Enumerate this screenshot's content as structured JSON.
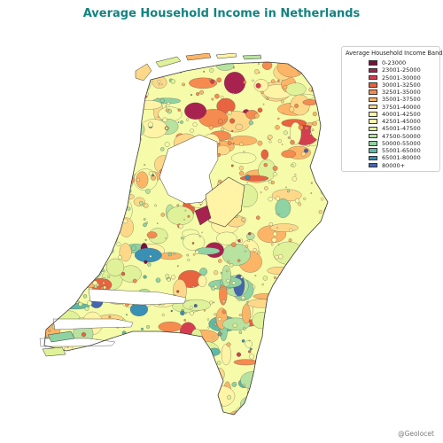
{
  "title": "Average Household Income in Netherlands",
  "credit": "@Geolocet",
  "colors": {
    "title": "#138381",
    "credit": "#7a7a7a",
    "border": "#3a3a3a",
    "water": "#ffffff"
  },
  "legend": {
    "title": "Average Household Income Bands",
    "items": [
      {
        "label": "0-23000",
        "color": "#7a0f3f"
      },
      {
        "label": "23001-25000",
        "color": "#a8224f"
      },
      {
        "label": "25001-30000",
        "color": "#d53e4f"
      },
      {
        "label": "30001-32500",
        "color": "#e8633f"
      },
      {
        "label": "32501-35000",
        "color": "#f58b4f"
      },
      {
        "label": "35001-37500",
        "color": "#fcb567"
      },
      {
        "label": "37501-40000",
        "color": "#fdd888"
      },
      {
        "label": "40001-42500",
        "color": "#fff3a6"
      },
      {
        "label": "42501-45000",
        "color": "#f5fba8"
      },
      {
        "label": "45001-47500",
        "color": "#dff299"
      },
      {
        "label": "47500-50000",
        "color": "#b7e29f"
      },
      {
        "label": "50000-55000",
        "color": "#8fd2a3"
      },
      {
        "label": "55001-65000",
        "color": "#5eb9a5"
      },
      {
        "label": "65001-80000",
        "color": "#3a8fb5"
      },
      {
        "label": "80000+",
        "color": "#4565ad"
      }
    ]
  }
}
